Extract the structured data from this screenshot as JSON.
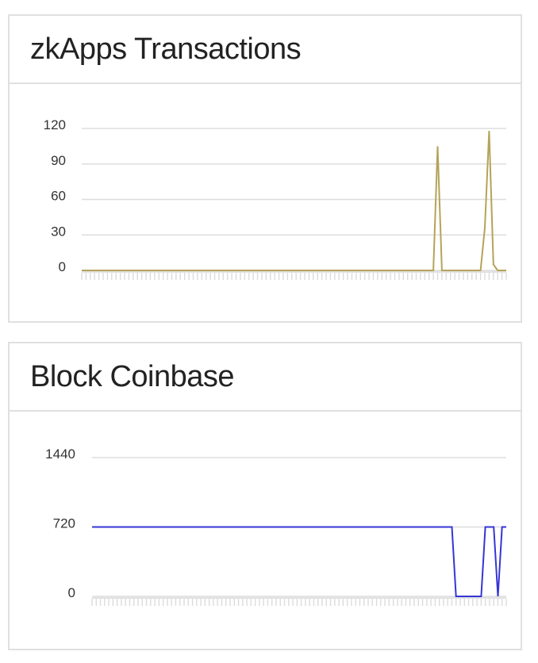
{
  "charts": [
    {
      "title": "zkApps Transactions",
      "line_color": "#b5a35a",
      "y_ticks": [
        "120",
        "90",
        "60",
        "30",
        "0"
      ]
    },
    {
      "title": "Block Coinbase",
      "line_color": "#3535d6",
      "y_ticks": [
        "1440",
        "720",
        "0"
      ]
    }
  ],
  "chart_data": [
    {
      "type": "line",
      "title": "zkApps Transactions",
      "xlabel": "",
      "ylabel": "",
      "ylim": [
        0,
        120
      ],
      "y_ticks": [
        0,
        30,
        60,
        90,
        120
      ],
      "grid": true,
      "legend": null,
      "x": "index 0..99 (unlabeled tick marks)",
      "series": [
        {
          "name": "zkApps Transactions",
          "color": "#b5a35a",
          "values": [
            0,
            0,
            0,
            0,
            0,
            0,
            0,
            0,
            0,
            0,
            0,
            0,
            0,
            0,
            0,
            0,
            0,
            0,
            0,
            0,
            0,
            0,
            0,
            0,
            0,
            0,
            0,
            0,
            0,
            0,
            0,
            0,
            0,
            0,
            0,
            0,
            0,
            0,
            0,
            0,
            0,
            0,
            0,
            0,
            0,
            0,
            0,
            0,
            0,
            0,
            0,
            0,
            0,
            0,
            0,
            0,
            0,
            0,
            0,
            0,
            0,
            0,
            0,
            0,
            0,
            0,
            0,
            0,
            0,
            0,
            0,
            0,
            0,
            0,
            0,
            0,
            0,
            0,
            0,
            0,
            0,
            0,
            0,
            105,
            0,
            0,
            0,
            0,
            0,
            0,
            0,
            0,
            0,
            0,
            36,
            118,
            5,
            0,
            0,
            0
          ]
        }
      ]
    },
    {
      "type": "line",
      "title": "Block Coinbase",
      "xlabel": "",
      "ylabel": "",
      "ylim": [
        0,
        1440
      ],
      "y_ticks": [
        0,
        720,
        1440
      ],
      "grid": true,
      "legend": null,
      "x": "index 0..99 (unlabeled tick marks)",
      "series": [
        {
          "name": "Block Coinbase",
          "color": "#3535d6",
          "values": [
            720,
            720,
            720,
            720,
            720,
            720,
            720,
            720,
            720,
            720,
            720,
            720,
            720,
            720,
            720,
            720,
            720,
            720,
            720,
            720,
            720,
            720,
            720,
            720,
            720,
            720,
            720,
            720,
            720,
            720,
            720,
            720,
            720,
            720,
            720,
            720,
            720,
            720,
            720,
            720,
            720,
            720,
            720,
            720,
            720,
            720,
            720,
            720,
            720,
            720,
            720,
            720,
            720,
            720,
            720,
            720,
            720,
            720,
            720,
            720,
            720,
            720,
            720,
            720,
            720,
            720,
            720,
            720,
            720,
            720,
            720,
            720,
            720,
            720,
            720,
            720,
            720,
            720,
            720,
            720,
            720,
            720,
            720,
            720,
            720,
            720,
            720,
            0,
            0,
            0,
            0,
            0,
            0,
            0,
            720,
            720,
            720,
            0,
            720,
            720
          ]
        }
      ]
    }
  ]
}
